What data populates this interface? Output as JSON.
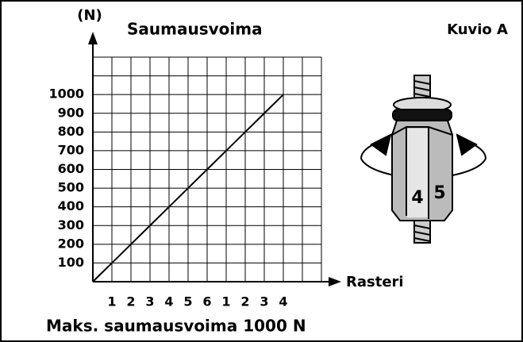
{
  "chart_data": {
    "type": "line",
    "title": "Saumausvoima",
    "corner_label": "Kuvio A",
    "y_label": "(N)",
    "x_label": "Rasteri",
    "footer": "Maks. saumausvoima 1000 N",
    "categories": [
      "1",
      "2",
      "3",
      "4",
      "5",
      "6",
      "1",
      "2",
      "3",
      "4"
    ],
    "values": [
      100,
      200,
      300,
      400,
      500,
      600,
      700,
      800,
      900,
      1000
    ],
    "color": "#000000",
    "ylim": [
      0,
      1200
    ],
    "yticks": [
      100,
      200,
      300,
      400,
      500,
      600,
      700,
      800,
      900,
      1000
    ],
    "grid": true
  },
  "figure": {
    "digit_left": "4",
    "digit_right": "5"
  }
}
